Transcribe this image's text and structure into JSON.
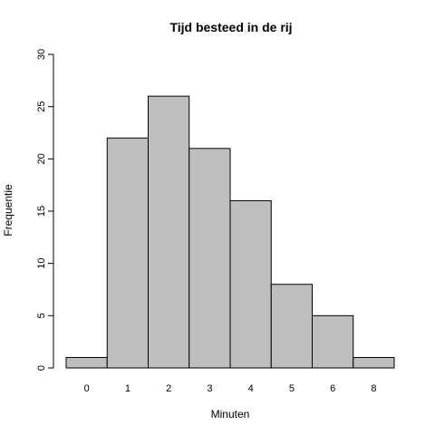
{
  "chart_data": {
    "type": "bar",
    "title": "Tijd besteed in de rij",
    "xlabel": "Minuten",
    "ylabel": "Frequentie",
    "categories": [
      "0",
      "1",
      "2",
      "3",
      "4",
      "5",
      "6",
      "8"
    ],
    "values": [
      1,
      22,
      26,
      21,
      16,
      8,
      5,
      1
    ],
    "ylim": [
      0,
      30
    ],
    "yticks": [
      0,
      5,
      10,
      15,
      20,
      25,
      30
    ],
    "grid": false,
    "bar_color": "#bebebe",
    "edge_color": "#000000"
  }
}
